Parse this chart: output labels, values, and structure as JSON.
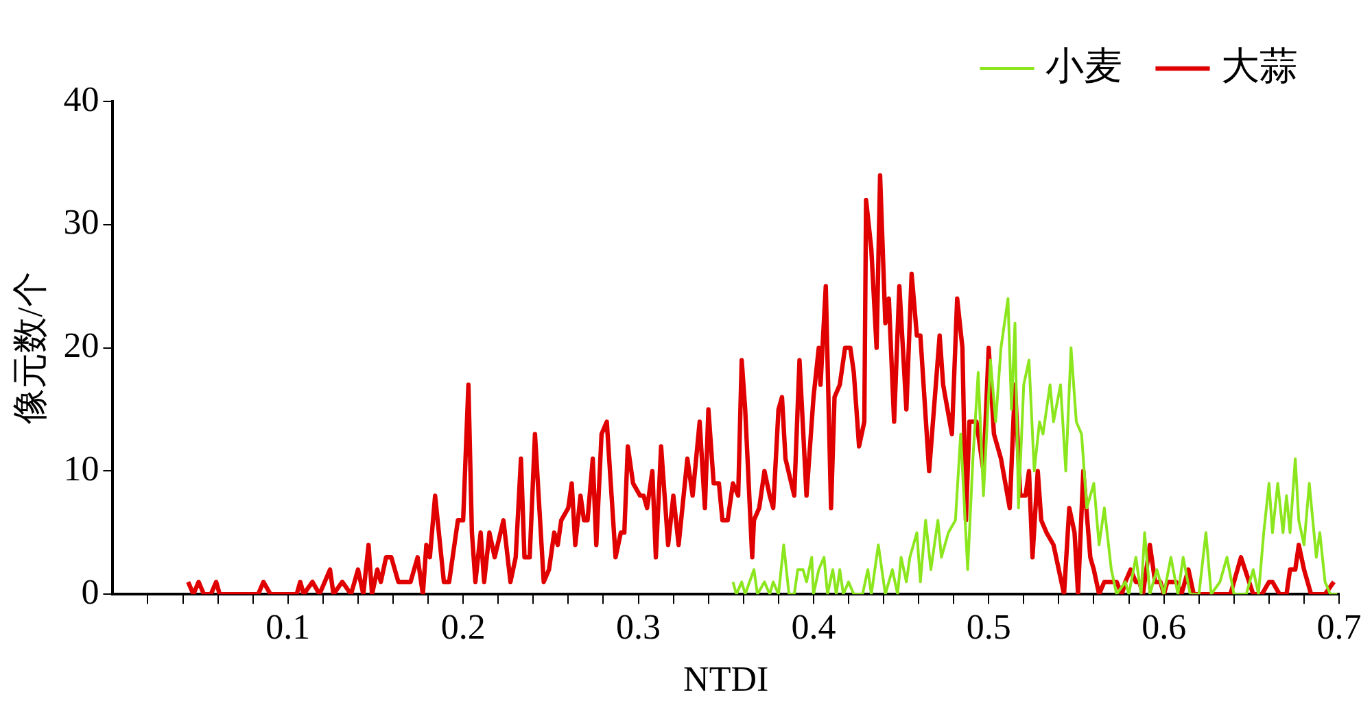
{
  "chart_data": {
    "type": "line",
    "xlabel": "NTDI",
    "ylabel": "像元数/个",
    "xlim": [
      0,
      0.7
    ],
    "ylim": [
      0,
      40
    ],
    "xticks": [
      {
        "value": 0.02,
        "label": null
      },
      {
        "value": 0.04,
        "label": null
      },
      {
        "value": 0.06,
        "label": null
      },
      {
        "value": 0.08,
        "label": null
      },
      0.1,
      {
        "value": 0.12,
        "label": null
      },
      {
        "value": 0.14,
        "label": null
      },
      {
        "value": 0.16,
        "label": null
      },
      {
        "value": 0.18,
        "label": null
      },
      0.2,
      {
        "value": 0.22,
        "label": null
      },
      {
        "value": 0.24,
        "label": null
      },
      {
        "value": 0.26,
        "label": null
      },
      {
        "value": 0.28,
        "label": null
      },
      0.3,
      {
        "value": 0.32,
        "label": null
      },
      {
        "value": 0.34,
        "label": null
      },
      {
        "value": 0.36,
        "label": null
      },
      {
        "value": 0.38,
        "label": null
      },
      0.4,
      {
        "value": 0.42,
        "label": null
      },
      {
        "value": 0.44,
        "label": null
      },
      {
        "value": 0.46,
        "label": null
      },
      {
        "value": 0.48,
        "label": null
      },
      0.5,
      {
        "value": 0.52,
        "label": null
      },
      {
        "value": 0.54,
        "label": null
      },
      {
        "value": 0.56,
        "label": null
      },
      {
        "value": 0.58,
        "label": null
      },
      0.6,
      {
        "value": 0.62,
        "label": null
      },
      {
        "value": 0.64,
        "label": null
      },
      {
        "value": 0.66,
        "label": null
      },
      {
        "value": 0.68,
        "label": null
      },
      0.7
    ],
    "yticks": [
      0,
      10,
      20,
      30,
      40
    ],
    "legend": "top right",
    "grid": false,
    "marker": "none",
    "line_style": "solid",
    "series": [
      {
        "name": "小麦",
        "color": "#8ce61e",
        "x": [
          0.354,
          0.356,
          0.359,
          0.361,
          0.366,
          0.368,
          0.372,
          0.375,
          0.377,
          0.38,
          0.383,
          0.386,
          0.389,
          0.391,
          0.394,
          0.396,
          0.399,
          0.4,
          0.403,
          0.406,
          0.408,
          0.411,
          0.413,
          0.415,
          0.417,
          0.42,
          0.423,
          0.428,
          0.431,
          0.433,
          0.437,
          0.441,
          0.445,
          0.448,
          0.45,
          0.453,
          0.455,
          0.459,
          0.461,
          0.464,
          0.467,
          0.471,
          0.473,
          0.477,
          0.481,
          0.484,
          0.488,
          0.491,
          0.494,
          0.497,
          0.501,
          0.504,
          0.507,
          0.511,
          0.513,
          0.515,
          0.517,
          0.52,
          0.523,
          0.526,
          0.529,
          0.531,
          0.535,
          0.537,
          0.541,
          0.544,
          0.547,
          0.55,
          0.553,
          0.556,
          0.56,
          0.563,
          0.566,
          0.57,
          0.573,
          0.578,
          0.58,
          0.584,
          0.587,
          0.589,
          0.592,
          0.596,
          0.6,
          0.604,
          0.608,
          0.611,
          0.615,
          0.62,
          0.624,
          0.627,
          0.632,
          0.636,
          0.64,
          0.647,
          0.651,
          0.654,
          0.657,
          0.66,
          0.662,
          0.665,
          0.668,
          0.67,
          0.672,
          0.675,
          0.677,
          0.68,
          0.683,
          0.687,
          0.689,
          0.692,
          0.695,
          0.699
        ],
        "values": [
          1,
          0,
          1,
          0,
          2,
          0,
          1,
          0,
          1,
          0,
          4,
          0,
          0,
          2,
          2,
          1,
          3,
          0,
          2,
          3,
          0,
          2,
          0,
          2,
          0,
          1,
          0,
          0,
          2,
          0,
          4,
          0,
          2,
          0,
          3,
          1,
          3,
          5,
          1,
          6,
          2,
          6,
          3,
          5,
          6,
          13,
          2,
          11,
          18,
          8,
          19,
          14,
          20,
          24,
          15,
          22,
          7,
          17,
          19,
          10,
          14,
          13,
          17,
          14,
          17,
          10,
          20,
          14,
          13,
          7,
          9,
          4,
          7,
          2,
          0,
          1,
          0,
          3,
          0,
          5,
          0,
          2,
          0,
          3,
          0,
          3,
          0,
          0,
          5,
          0,
          1,
          3,
          0,
          0,
          2,
          0,
          5,
          9,
          5,
          9,
          5,
          8,
          5,
          11,
          6,
          4,
          9,
          3,
          5,
          1,
          0,
          0
        ]
      },
      {
        "name": "大蒜",
        "color": "#e00000",
        "x": [
          0.043,
          0.046,
          0.049,
          0.052,
          0.056,
          0.059,
          0.061,
          0.083,
          0.086,
          0.09,
          0.105,
          0.107,
          0.109,
          0.114,
          0.118,
          0.124,
          0.126,
          0.131,
          0.136,
          0.14,
          0.143,
          0.146,
          0.148,
          0.151,
          0.153,
          0.156,
          0.159,
          0.163,
          0.17,
          0.174,
          0.177,
          0.179,
          0.181,
          0.184,
          0.189,
          0.192,
          0.196,
          0.197,
          0.2,
          0.203,
          0.205,
          0.207,
          0.21,
          0.212,
          0.215,
          0.218,
          0.223,
          0.227,
          0.23,
          0.233,
          0.235,
          0.238,
          0.241,
          0.246,
          0.249,
          0.252,
          0.254,
          0.256,
          0.26,
          0.262,
          0.264,
          0.267,
          0.269,
          0.271,
          0.274,
          0.276,
          0.279,
          0.282,
          0.287,
          0.29,
          0.292,
          0.294,
          0.297,
          0.301,
          0.303,
          0.305,
          0.308,
          0.31,
          0.313,
          0.317,
          0.32,
          0.323,
          0.328,
          0.331,
          0.335,
          0.338,
          0.34,
          0.343,
          0.346,
          0.348,
          0.351,
          0.354,
          0.357,
          0.359,
          0.361,
          0.365,
          0.366,
          0.369,
          0.372,
          0.375,
          0.377,
          0.38,
          0.382,
          0.384,
          0.389,
          0.392,
          0.396,
          0.4,
          0.403,
          0.404,
          0.407,
          0.41,
          0.412,
          0.415,
          0.418,
          0.421,
          0.423,
          0.426,
          0.429,
          0.43,
          0.433,
          0.436,
          0.438,
          0.441,
          0.443,
          0.446,
          0.449,
          0.453,
          0.456,
          0.459,
          0.461,
          0.466,
          0.472,
          0.474,
          0.479,
          0.482,
          0.485,
          0.487,
          0.489,
          0.493,
          0.497,
          0.5,
          0.503,
          0.507,
          0.512,
          0.515,
          0.518,
          0.521,
          0.523,
          0.525,
          0.528,
          0.53,
          0.533,
          0.537,
          0.54,
          0.543,
          0.546,
          0.549,
          0.551,
          0.554,
          0.558,
          0.56,
          0.563,
          0.566,
          0.573,
          0.576,
          0.578,
          0.581,
          0.584,
          0.586,
          0.588,
          0.592,
          0.595,
          0.598,
          0.6,
          0.602,
          0.607,
          0.61,
          0.614,
          0.617,
          0.622,
          0.638,
          0.644,
          0.651,
          0.656,
          0.66,
          0.662,
          0.666,
          0.67,
          0.672,
          0.675,
          0.677,
          0.68,
          0.684,
          0.692,
          0.697
        ],
        "values": [
          1,
          0,
          1,
          0,
          0,
          1,
          0,
          0,
          1,
          0,
          0,
          1,
          0,
          1,
          0,
          2,
          0,
          1,
          0,
          2,
          0,
          4,
          0,
          2,
          1,
          3,
          3,
          1,
          1,
          3,
          0,
          4,
          3,
          8,
          1,
          1,
          5,
          6,
          6,
          17,
          5,
          1,
          5,
          1,
          5,
          3,
          6,
          1,
          3,
          11,
          3,
          3,
          13,
          1,
          2,
          5,
          4,
          6,
          7,
          9,
          4,
          8,
          6,
          6,
          11,
          4,
          13,
          14,
          3,
          5,
          5,
          12,
          9,
          8,
          8,
          7,
          10,
          3,
          12,
          4,
          8,
          4,
          11,
          8,
          14,
          7,
          15,
          9,
          9,
          6,
          6,
          9,
          8,
          19,
          15,
          3,
          6,
          7,
          10,
          8,
          7,
          15,
          16,
          11,
          8,
          19,
          8,
          16,
          20,
          17,
          25,
          7,
          16,
          17,
          20,
          20,
          18,
          12,
          14,
          32,
          28,
          20,
          34,
          22,
          24,
          14,
          25,
          15,
          26,
          21,
          21,
          10,
          21,
          17,
          13,
          24,
          20,
          6,
          14,
          14,
          10,
          20,
          13,
          11,
          7,
          17,
          8,
          8,
          10,
          3,
          10,
          6,
          5,
          4,
          2,
          0,
          7,
          5,
          0,
          10,
          3,
          2,
          0,
          1,
          1,
          0,
          1,
          2,
          1,
          1,
          0,
          4,
          1,
          1,
          0,
          1,
          1,
          0,
          2,
          0,
          0,
          0,
          3,
          0,
          0,
          1,
          1,
          0,
          0,
          2,
          2,
          4,
          2,
          0,
          0,
          1
        ]
      }
    ]
  }
}
